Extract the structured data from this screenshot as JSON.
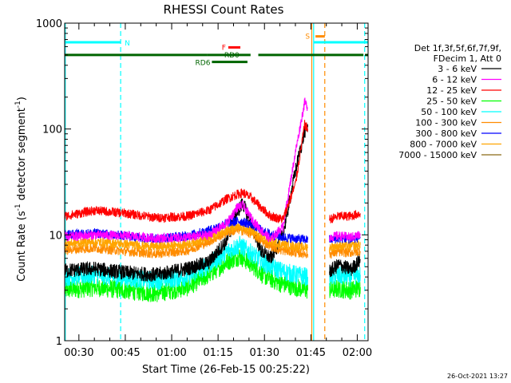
{
  "chart_data": {
    "type": "line",
    "title": "RHESSI Count Rates",
    "xlabel": "Start Time (26-Feb-15 00:25:22)",
    "ylabel_main": "Count Rate (s",
    "ylabel_sup1": "-1",
    "ylabel_mid": " detector segment",
    "ylabel_sup2": "-1",
    "ylabel_end": ")",
    "y_scale": "log",
    "ylim": [
      1,
      1000
    ],
    "x_range_minutes": [
      25.4,
      123.5
    ],
    "x_ticks": [
      {
        "minute": 30,
        "label": "00:30"
      },
      {
        "minute": 45,
        "label": "00:45"
      },
      {
        "minute": 60,
        "label": "01:00"
      },
      {
        "minute": 75,
        "label": "01:15"
      },
      {
        "minute": 90,
        "label": "01:30"
      },
      {
        "minute": 105,
        "label": "01:45"
      },
      {
        "minute": 120,
        "label": "02:00"
      }
    ],
    "y_ticks": [
      {
        "value": 1,
        "label": "1"
      },
      {
        "value": 10,
        "label": "10"
      },
      {
        "value": 100,
        "label": "100"
      },
      {
        "value": 1000,
        "label": "1000"
      }
    ],
    "legend_header": [
      "Det 1f,3f,5f,6f,7f,9f,",
      "FDecim 1, Att 0"
    ],
    "legend_position": "right",
    "series": [
      {
        "name": "3 - 6 keV",
        "color": "#000000",
        "points": [
          [
            25.5,
            4.6
          ],
          [
            35,
            4.8
          ],
          [
            45,
            4.4
          ],
          [
            55,
            4.2
          ],
          [
            65,
            4.8
          ],
          [
            72,
            5.5
          ],
          [
            78,
            9
          ],
          [
            81,
            16
          ],
          [
            83,
            20
          ],
          [
            86,
            12
          ],
          [
            89,
            7
          ],
          [
            92,
            6
          ],
          [
            96,
            10
          ],
          [
            100,
            40
          ],
          [
            103,
            95
          ],
          [
            104,
            105
          ],
          [
            106,
            null
          ],
          [
            111,
            4.5
          ],
          [
            114,
            5.2
          ],
          [
            118,
            4.7
          ],
          [
            121,
            5.8
          ]
        ]
      },
      {
        "name": "6 - 12 keV",
        "color": "#ff00ff",
        "points": [
          [
            25.5,
            9.5
          ],
          [
            35,
            10
          ],
          [
            45,
            9.8
          ],
          [
            55,
            9.3
          ],
          [
            65,
            9.5
          ],
          [
            72,
            10
          ],
          [
            78,
            13
          ],
          [
            81,
            18
          ],
          [
            83,
            19
          ],
          [
            86,
            14
          ],
          [
            89,
            11
          ],
          [
            92,
            9
          ],
          [
            96,
            12
          ],
          [
            100,
            60
          ],
          [
            103,
            180
          ],
          [
            104,
            160
          ],
          [
            106,
            null
          ],
          [
            111,
            9.5
          ],
          [
            114,
            9.8
          ],
          [
            118,
            9.5
          ],
          [
            121,
            10
          ]
        ]
      },
      {
        "name": "12 - 25 keV",
        "color": "#ff0000",
        "points": [
          [
            25.5,
            15
          ],
          [
            35,
            17
          ],
          [
            45,
            16
          ],
          [
            55,
            14.5
          ],
          [
            65,
            15
          ],
          [
            72,
            17
          ],
          [
            78,
            22
          ],
          [
            81,
            24
          ],
          [
            83,
            25
          ],
          [
            86,
            22
          ],
          [
            89,
            18
          ],
          [
            92,
            15
          ],
          [
            96,
            14
          ],
          [
            100,
            30
          ],
          [
            103,
            110
          ],
          [
            104,
            100
          ],
          [
            106,
            null
          ],
          [
            111,
            14
          ],
          [
            114,
            15
          ],
          [
            118,
            15
          ],
          [
            121,
            16
          ]
        ]
      },
      {
        "name": "25 - 50 keV",
        "color": "#00ff00",
        "points": [
          [
            25.5,
            3
          ],
          [
            35,
            3.2
          ],
          [
            45,
            3
          ],
          [
            55,
            2.8
          ],
          [
            65,
            3.2
          ],
          [
            72,
            4.2
          ],
          [
            78,
            5.6
          ],
          [
            82,
            6.3
          ],
          [
            86,
            5.2
          ],
          [
            90,
            4.1
          ],
          [
            95,
            3.5
          ],
          [
            100,
            3.2
          ],
          [
            104,
            3
          ],
          [
            106,
            null
          ],
          [
            111,
            3
          ],
          [
            114,
            3.1
          ],
          [
            118,
            3
          ],
          [
            121,
            3.2
          ]
        ]
      },
      {
        "name": "50 - 100 keV",
        "color": "#00ffff",
        "points": [
          [
            25.5,
            4
          ],
          [
            35,
            4.2
          ],
          [
            45,
            3.9
          ],
          [
            55,
            3.7
          ],
          [
            65,
            4
          ],
          [
            72,
            5.2
          ],
          [
            78,
            7
          ],
          [
            82,
            8
          ],
          [
            86,
            6.6
          ],
          [
            90,
            5.4
          ],
          [
            95,
            4.6
          ],
          [
            100,
            4.2
          ],
          [
            104,
            4
          ],
          [
            106,
            null
          ],
          [
            111,
            4
          ],
          [
            114,
            4.1
          ],
          [
            118,
            4
          ],
          [
            121,
            4.2
          ]
        ]
      },
      {
        "name": "100 - 300 keV",
        "color": "#ff8c00",
        "points": [
          [
            25.5,
            7.2
          ],
          [
            35,
            7.5
          ],
          [
            45,
            7
          ],
          [
            55,
            6.6
          ],
          [
            65,
            7.1
          ],
          [
            72,
            8.6
          ],
          [
            78,
            10.6
          ],
          [
            82,
            11.2
          ],
          [
            86,
            10.2
          ],
          [
            90,
            8.4
          ],
          [
            95,
            7.2
          ],
          [
            100,
            6.8
          ],
          [
            104,
            6.6
          ],
          [
            106,
            null
          ],
          [
            111,
            6.6
          ],
          [
            114,
            6.9
          ],
          [
            118,
            6.8
          ],
          [
            121,
            7
          ]
        ]
      },
      {
        "name": "300 - 800 keV",
        "color": "#0000ff",
        "points": [
          [
            25.5,
            10
          ],
          [
            35,
            10.4
          ],
          [
            45,
            9.8
          ],
          [
            55,
            9.2
          ],
          [
            65,
            9.8
          ],
          [
            72,
            11
          ],
          [
            78,
            13
          ],
          [
            82,
            13.5
          ],
          [
            86,
            12.5
          ],
          [
            90,
            10.6
          ],
          [
            95,
            9.6
          ],
          [
            100,
            9.2
          ],
          [
            104,
            9
          ],
          [
            106,
            null
          ],
          [
            111,
            9
          ],
          [
            114,
            9.3
          ],
          [
            118,
            9.1
          ],
          [
            121,
            9.5
          ]
        ]
      },
      {
        "name": "800 - 7000 keV",
        "color": "#ffa500",
        "points": [
          [
            25.5,
            8.3
          ],
          [
            35,
            8.6
          ],
          [
            45,
            8.2
          ],
          [
            55,
            7.7
          ],
          [
            65,
            8.2
          ],
          [
            72,
            9.4
          ],
          [
            78,
            11.2
          ],
          [
            82,
            11.8
          ],
          [
            86,
            10.8
          ],
          [
            90,
            9.1
          ],
          [
            95,
            8.2
          ],
          [
            100,
            7.8
          ],
          [
            104,
            7.6
          ],
          [
            106,
            null
          ],
          [
            111,
            7.6
          ],
          [
            114,
            7.9
          ],
          [
            118,
            7.8
          ],
          [
            121,
            8.1
          ]
        ]
      },
      {
        "name": "7000 - 15000 keV",
        "color": "#8b6914",
        "points": []
      }
    ],
    "status_bars": [
      {
        "label": "N",
        "color": "#00ffff",
        "row_value": 660,
        "segments": [
          [
            25.4,
            43.5
          ],
          [
            106,
            123.5
          ]
        ]
      },
      {
        "label": "F",
        "color": "#ff0000",
        "row_value": 590,
        "segments": [
          [
            78.3,
            82.2
          ]
        ]
      },
      {
        "label": "RD0",
        "color": "#006400",
        "row_value": 500,
        "segments": [
          [
            25.4,
            71.5
          ],
          [
            71.5,
            85.5
          ],
          [
            88,
            122
          ],
          [
            122.5,
            123.5
          ]
        ]
      },
      {
        "label": "RD6",
        "color": "#006400",
        "row_value": 430,
        "segments": [
          [
            73,
            84.5
          ]
        ]
      },
      {
        "label": "S",
        "color": "#ff8c00",
        "row_value": 750,
        "segments": [
          [
            106.5,
            109.5
          ]
        ]
      }
    ],
    "vertical_markers": [
      {
        "minute": 43.5,
        "color": "#00ffff",
        "style": "dashed"
      },
      {
        "minute": 105.3,
        "color": "#ff8c00",
        "style": "solid"
      },
      {
        "minute": 105.9,
        "color": "#00ffff",
        "style": "solid"
      },
      {
        "minute": 109.5,
        "color": "#ff8c00",
        "style": "dashed"
      },
      {
        "minute": 122.4,
        "color": "#00ffff",
        "style": "dashed"
      },
      {
        "minute": 25.6,
        "color": "#00ffff",
        "style": "solid"
      }
    ],
    "timestamp": "26-Oct-2021 13:27"
  }
}
